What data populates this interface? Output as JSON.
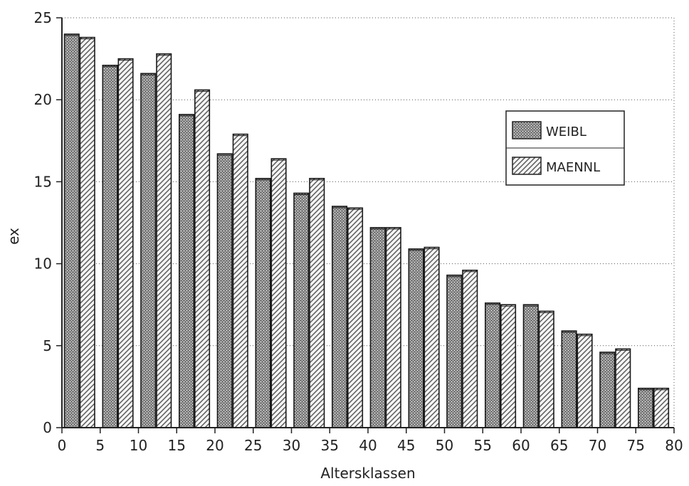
{
  "chart_data": {
    "type": "bar",
    "title": "",
    "xlabel": "Altersklassen",
    "ylabel": "ex",
    "ylim": [
      0,
      25
    ],
    "yticks": [
      "0",
      "5",
      "10",
      "15",
      "20",
      "25"
    ],
    "xticks": [
      "0",
      "5",
      "10",
      "15",
      "20",
      "25",
      "30",
      "35",
      "40",
      "45",
      "50",
      "55",
      "60",
      "65",
      "70",
      "75",
      "80"
    ],
    "categories": [
      "0",
      "5",
      "10",
      "15",
      "20",
      "25",
      "30",
      "35",
      "40",
      "45",
      "50",
      "55",
      "60",
      "65",
      "70",
      "75"
    ],
    "series": [
      {
        "name": "WEIBL",
        "values": [
          24.0,
          22.1,
          21.6,
          19.1,
          16.7,
          15.2,
          14.3,
          13.5,
          12.2,
          10.9,
          9.3,
          7.6,
          7.5,
          5.9,
          4.6,
          2.4
        ]
      },
      {
        "name": "MAENNL",
        "values": [
          23.8,
          22.5,
          22.8,
          20.6,
          17.9,
          16.4,
          15.2,
          13.4,
          12.2,
          11.0,
          9.6,
          7.5,
          7.1,
          5.7,
          4.8,
          2.4
        ]
      }
    ],
    "grid": true,
    "legend_position": "right"
  }
}
